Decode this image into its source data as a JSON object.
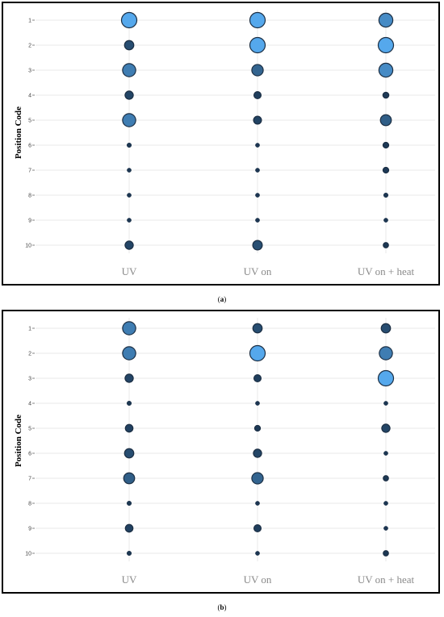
{
  "chart_data": [
    {
      "type": "scatter",
      "panel_label": "a",
      "ylabel": "Position Code",
      "xlabel": "",
      "categories": [
        "UV",
        "UV on",
        "UV on + heat"
      ],
      "y_ticks": [
        "1",
        "2",
        "3",
        "4",
        "5",
        "6",
        "7",
        "8",
        "9",
        "10"
      ],
      "grid": true,
      "encoding": "bubble size and color (light blue = larger value, dark navy = smaller value)",
      "points": [
        {
          "x": "UV",
          "y": 1,
          "value": 10
        },
        {
          "x": "UV",
          "y": 2,
          "value": 3
        },
        {
          "x": "UV",
          "y": 3,
          "value": 7
        },
        {
          "x": "UV",
          "y": 4,
          "value": 2.2
        },
        {
          "x": "UV",
          "y": 5,
          "value": 7
        },
        {
          "x": "UV",
          "y": 6,
          "value": 0.4
        },
        {
          "x": "UV",
          "y": 7,
          "value": 0.3
        },
        {
          "x": "UV",
          "y": 8,
          "value": 0.3
        },
        {
          "x": "UV",
          "y": 9,
          "value": 0.3
        },
        {
          "x": "UV",
          "y": 10,
          "value": 2.2
        },
        {
          "x": "UV on",
          "y": 1,
          "value": 10
        },
        {
          "x": "UV on",
          "y": 2,
          "value": 10
        },
        {
          "x": "UV on",
          "y": 3,
          "value": 5
        },
        {
          "x": "UV on",
          "y": 4,
          "value": 1.5
        },
        {
          "x": "UV on",
          "y": 5,
          "value": 2
        },
        {
          "x": "UV on",
          "y": 6,
          "value": 0.3
        },
        {
          "x": "UV on",
          "y": 7,
          "value": 0.3
        },
        {
          "x": "UV on",
          "y": 8,
          "value": 0.3
        },
        {
          "x": "UV on",
          "y": 9,
          "value": 0.3
        },
        {
          "x": "UV on",
          "y": 10,
          "value": 3.2
        },
        {
          "x": "UV on + heat",
          "y": 1,
          "value": 8
        },
        {
          "x": "UV on + heat",
          "y": 2,
          "value": 10
        },
        {
          "x": "UV on + heat",
          "y": 3,
          "value": 8
        },
        {
          "x": "UV on + heat",
          "y": 4,
          "value": 0.9
        },
        {
          "x": "UV on + heat",
          "y": 5,
          "value": 4.5
        },
        {
          "x": "UV on + heat",
          "y": 6,
          "value": 0.8
        },
        {
          "x": "UV on + heat",
          "y": 7,
          "value": 0.8
        },
        {
          "x": "UV on + heat",
          "y": 8,
          "value": 0.4
        },
        {
          "x": "UV on + heat",
          "y": 9,
          "value": 0.3
        },
        {
          "x": "UV on + heat",
          "y": 10,
          "value": 0.6
        }
      ]
    },
    {
      "type": "scatter",
      "panel_label": "b",
      "ylabel": "Position Code",
      "xlabel": "",
      "categories": [
        "UV",
        "UV on",
        "UV on + heat"
      ],
      "y_ticks": [
        "1",
        "2",
        "3",
        "4",
        "5",
        "6",
        "7",
        "8",
        "9",
        "10"
      ],
      "grid": true,
      "encoding": "bubble size and color (light blue = larger value, dark navy = smaller value)",
      "points": [
        {
          "x": "UV",
          "y": 1,
          "value": 7
        },
        {
          "x": "UV",
          "y": 2,
          "value": 7
        },
        {
          "x": "UV",
          "y": 3,
          "value": 2.2
        },
        {
          "x": "UV",
          "y": 4,
          "value": 0.4
        },
        {
          "x": "UV",
          "y": 5,
          "value": 1.8
        },
        {
          "x": "UV",
          "y": 6,
          "value": 3
        },
        {
          "x": "UV",
          "y": 7,
          "value": 4.5
        },
        {
          "x": "UV",
          "y": 8,
          "value": 0.4
        },
        {
          "x": "UV",
          "y": 9,
          "value": 1.8
        },
        {
          "x": "UV",
          "y": 10,
          "value": 0.4
        },
        {
          "x": "UV on",
          "y": 1,
          "value": 3
        },
        {
          "x": "UV on",
          "y": 2,
          "value": 10
        },
        {
          "x": "UV on",
          "y": 3,
          "value": 1.5
        },
        {
          "x": "UV on",
          "y": 4,
          "value": 0.3
        },
        {
          "x": "UV on",
          "y": 5,
          "value": 0.8
        },
        {
          "x": "UV on",
          "y": 6,
          "value": 2.2
        },
        {
          "x": "UV on",
          "y": 7,
          "value": 5
        },
        {
          "x": "UV on",
          "y": 8,
          "value": 0.3
        },
        {
          "x": "UV on",
          "y": 9,
          "value": 1.5
        },
        {
          "x": "UV on",
          "y": 10,
          "value": 0.3
        },
        {
          "x": "UV on + heat",
          "y": 1,
          "value": 3
        },
        {
          "x": "UV on + heat",
          "y": 2,
          "value": 7
        },
        {
          "x": "UV on + heat",
          "y": 3,
          "value": 10
        },
        {
          "x": "UV on + heat",
          "y": 4,
          "value": 0.3
        },
        {
          "x": "UV on + heat",
          "y": 5,
          "value": 2.2
        },
        {
          "x": "UV on + heat",
          "y": 6,
          "value": 0.3
        },
        {
          "x": "UV on + heat",
          "y": 7,
          "value": 0.6
        },
        {
          "x": "UV on + heat",
          "y": 8,
          "value": 0.3
        },
        {
          "x": "UV on + heat",
          "y": 9,
          "value": 0.3
        },
        {
          "x": "UV on + heat",
          "y": 10,
          "value": 0.6
        }
      ]
    }
  ],
  "colors": {
    "bubble_low": "#1b3550",
    "bubble_high": "#55a8ec",
    "bubble_stroke": "#1c2f44",
    "grid": "#eaeaea"
  }
}
